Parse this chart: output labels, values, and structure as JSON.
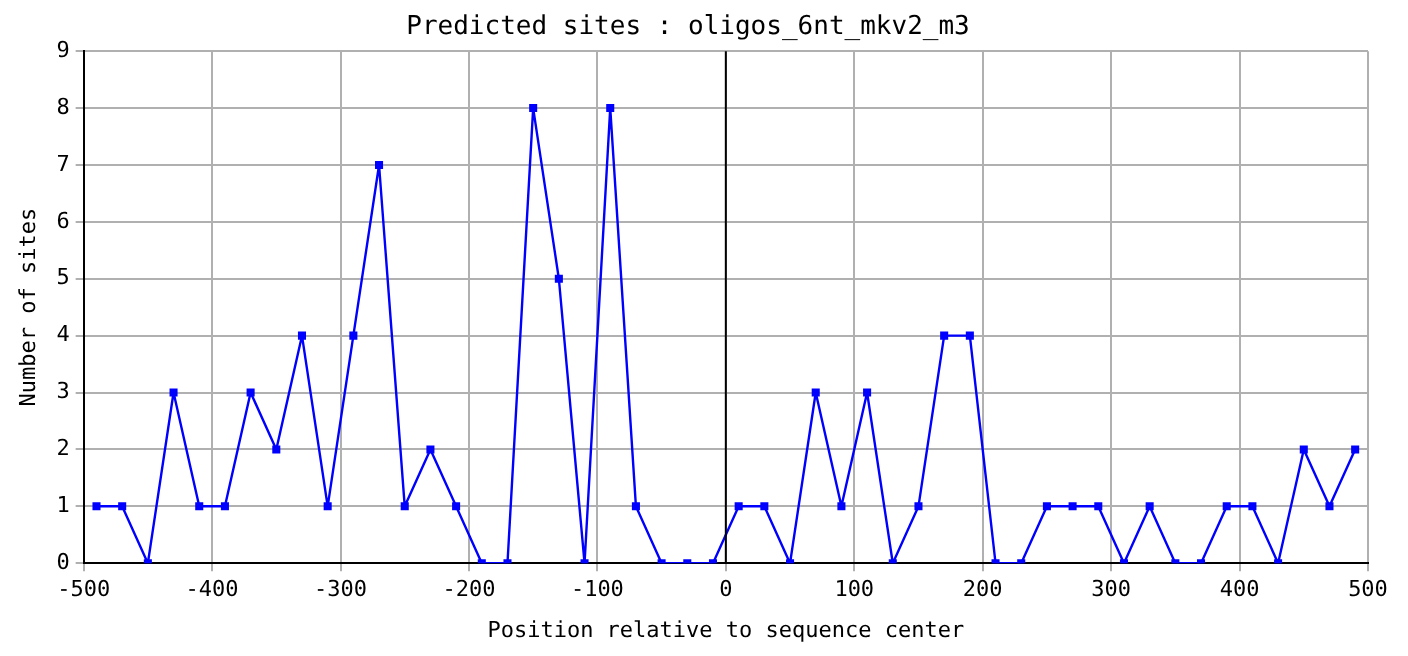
{
  "chart_data": {
    "type": "line",
    "title": "Predicted sites : oligos_6nt_mkv2_m3",
    "xlabel": "Position relative to sequence center",
    "ylabel": "Number of sites",
    "x": [
      -490,
      -470,
      -450,
      -430,
      -410,
      -390,
      -370,
      -350,
      -330,
      -310,
      -290,
      -270,
      -250,
      -230,
      -210,
      -190,
      -170,
      -150,
      -130,
      -110,
      -90,
      -70,
      -50,
      -30,
      -10,
      10,
      30,
      50,
      70,
      90,
      110,
      130,
      150,
      170,
      190,
      210,
      230,
      250,
      270,
      290,
      310,
      330,
      350,
      370,
      390,
      410,
      430,
      450,
      470,
      490
    ],
    "series": [
      {
        "color": "#0000ff",
        "values": [
          1,
          1,
          0,
          3,
          1,
          1,
          3,
          2,
          4,
          1,
          4,
          7,
          1,
          2,
          1,
          0,
          0,
          8,
          5,
          0,
          8,
          1,
          0,
          0,
          0,
          1,
          1,
          0,
          3,
          1,
          3,
          0,
          1,
          4,
          4,
          0,
          0,
          1,
          1,
          1,
          0,
          1,
          0,
          0,
          1,
          1,
          0,
          2,
          1,
          2
        ]
      }
    ],
    "xlim": [
      -500,
      500
    ],
    "xticks": [
      -500,
      -400,
      -300,
      -200,
      -100,
      0,
      100,
      200,
      300,
      400,
      500
    ],
    "ylim": [
      0,
      9
    ],
    "yticks": [
      0,
      1,
      2,
      3,
      4,
      5,
      6,
      7,
      8,
      9
    ],
    "ref_lines": [
      {
        "axis": "x",
        "value": 0,
        "color": "#000000"
      }
    ],
    "grid": true,
    "legend": false,
    "marker": "square",
    "line_style": "solid"
  }
}
